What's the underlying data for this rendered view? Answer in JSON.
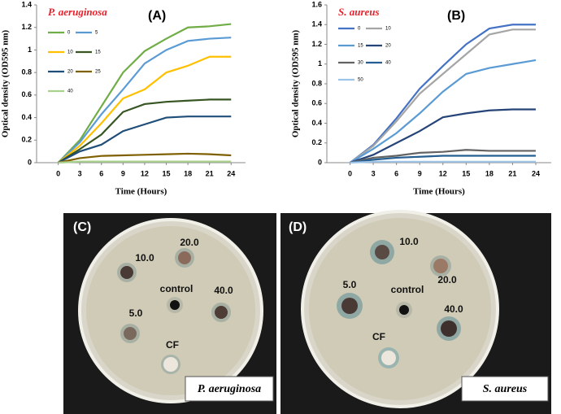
{
  "chart_data": [
    {
      "type": "line",
      "title": "P. aeruginosa",
      "panel_label": "(A)",
      "x_label": "Time (Hours)",
      "y_label": "Optical density (OD595 nm)",
      "x": [
        0,
        3,
        6,
        9,
        12,
        15,
        18,
        21,
        24
      ],
      "xlim": [
        -3,
        26
      ],
      "xticks": [
        0,
        3,
        6,
        9,
        12,
        15,
        18,
        21,
        24
      ],
      "ylim": [
        0,
        1.4
      ],
      "yticks": [
        0,
        0.2,
        0.4,
        0.6,
        0.8,
        1,
        1.2,
        1.4
      ],
      "grid": false,
      "legend": "upper-left",
      "series": [
        {
          "name": "0",
          "color": "#70ad47",
          "values": [
            0,
            0.2,
            0.5,
            0.8,
            0.99,
            1.1,
            1.2,
            1.21,
            1.23
          ]
        },
        {
          "name": "5",
          "color": "#5b9bd5",
          "values": [
            0,
            0.18,
            0.43,
            0.65,
            0.88,
            1.0,
            1.08,
            1.1,
            1.11
          ]
        },
        {
          "name": "10",
          "color": "#ffc000",
          "values": [
            0,
            0.15,
            0.35,
            0.57,
            0.65,
            0.8,
            0.86,
            0.94,
            0.94
          ]
        },
        {
          "name": "15",
          "color": "#375623",
          "values": [
            0,
            0.12,
            0.25,
            0.45,
            0.52,
            0.54,
            0.55,
            0.56,
            0.56
          ]
        },
        {
          "name": "20",
          "color": "#1f4e79",
          "values": [
            0,
            0.1,
            0.16,
            0.28,
            0.34,
            0.4,
            0.41,
            0.41,
            0.41
          ]
        },
        {
          "name": "25",
          "color": "#7f6000",
          "values": [
            0,
            0.04,
            0.06,
            0.065,
            0.07,
            0.075,
            0.08,
            0.075,
            0.065
          ]
        },
        {
          "name": "40",
          "color": "#a9d18e",
          "values": [
            0,
            0.01,
            0.01,
            0.01,
            0.01,
            0.01,
            0.01,
            0.01,
            0.01
          ]
        }
      ]
    },
    {
      "type": "line",
      "title": "S. aureus",
      "panel_label": "(B)",
      "x_label": "Time (Hours)",
      "y_label": "Optical density (OD595 nm)",
      "x": [
        0,
        3,
        6,
        9,
        12,
        15,
        18,
        21,
        24
      ],
      "xlim": [
        -3,
        26
      ],
      "xticks": [
        0,
        3,
        6,
        9,
        12,
        15,
        18,
        21,
        24
      ],
      "ylim": [
        0,
        1.6
      ],
      "yticks": [
        0,
        0.2,
        0.4,
        0.6,
        0.8,
        1,
        1.2,
        1.4,
        1.6
      ],
      "grid": false,
      "legend": "upper-left",
      "series": [
        {
          "name": "0",
          "color": "#4472c4",
          "values": [
            0,
            0.18,
            0.45,
            0.75,
            0.98,
            1.2,
            1.36,
            1.4,
            1.4
          ]
        },
        {
          "name": "10",
          "color": "#a5a5a5",
          "values": [
            0,
            0.17,
            0.42,
            0.7,
            0.9,
            1.1,
            1.3,
            1.35,
            1.35
          ]
        },
        {
          "name": "15",
          "color": "#5b9bd5",
          "values": [
            0,
            0.14,
            0.3,
            0.5,
            0.72,
            0.9,
            0.96,
            1.0,
            1.04
          ]
        },
        {
          "name": "20",
          "color": "#264478",
          "values": [
            0,
            0.08,
            0.2,
            0.32,
            0.46,
            0.5,
            0.53,
            0.54,
            0.54
          ]
        },
        {
          "name": "30",
          "color": "#636363",
          "values": [
            0,
            0.05,
            0.07,
            0.1,
            0.11,
            0.13,
            0.12,
            0.12,
            0.12
          ]
        },
        {
          "name": "40",
          "color": "#255e91",
          "values": [
            0,
            0.03,
            0.05,
            0.06,
            0.07,
            0.07,
            0.07,
            0.07,
            0.07
          ]
        },
        {
          "name": "50",
          "color": "#9dc3e6",
          "values": [
            0,
            0.01,
            0.01,
            0.01,
            0.01,
            0.01,
            0.01,
            0.01,
            0.01
          ]
        }
      ]
    }
  ],
  "photos": [
    {
      "panel_label": "(C)",
      "organism": "P. aeruginosa",
      "wells": [
        "10.0",
        "20.0",
        "control",
        "40.0",
        "5.0",
        "CF"
      ]
    },
    {
      "panel_label": "(D)",
      "organism": "S. aureus",
      "wells": [
        "10.0",
        "20.0",
        "5.0",
        "control",
        "40.0",
        "CF"
      ]
    }
  ]
}
